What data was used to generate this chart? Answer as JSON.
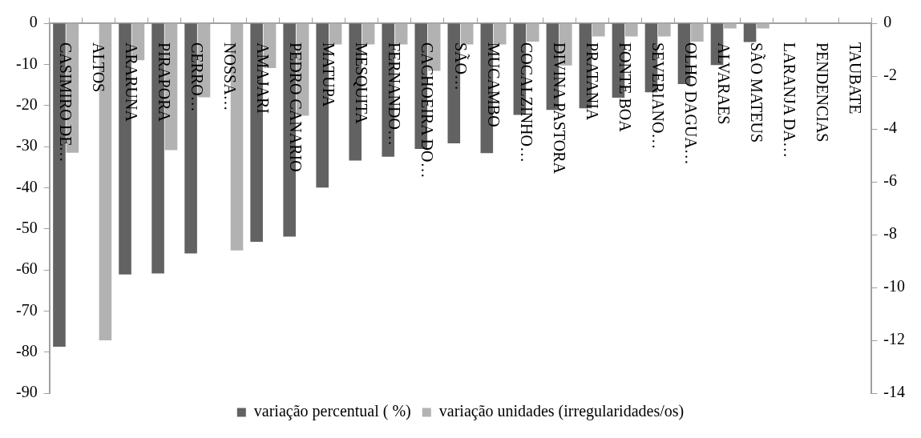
{
  "chart_data": {
    "type": "bar",
    "categories": [
      "CASIMIRO DE…",
      "ALTOS",
      "ARARUNA",
      "PIRAPORA",
      "CERRO…",
      "NOSSA…",
      "AMAJARI",
      "PEDRO CANARIO",
      "MATUPA",
      "MESQUITA",
      "FERNANDO…",
      "CACHOEIRA DO…",
      "SÃO…",
      "MUCAMBO",
      "COCALZINHO…",
      "DIVINA PASTORA",
      "PRATANIA",
      "FONTE BOA",
      "SEVERIANO…",
      "OLHO DAGUA…",
      "ALVARAES",
      "SÃO MATEUS",
      "LARANJA DA…",
      "PENDENCIAS",
      "TAUBATE"
    ],
    "series": [
      {
        "name": "variação percentual ( %)",
        "color": "#626262",
        "values": [
          -78.7,
          null,
          -61.1,
          -60.9,
          -56.0,
          null,
          -53.2,
          -51.9,
          -40.0,
          -33.4,
          -32.5,
          -30.6,
          -29.2,
          -31.6,
          -22.3,
          -21.1,
          -20.7,
          -18.1,
          -16.8,
          -14.8,
          -10.2,
          -4.6,
          0,
          0,
          0
        ]
      },
      {
        "name": "variação unidades (irregularidades/os)",
        "color": "#b2b2b2",
        "axis": "y2",
        "values": [
          -4.9,
          -12.0,
          -1.4,
          -4.8,
          -2.8,
          -8.6,
          -1.7,
          -3.5,
          -0.8,
          -0.8,
          -0.8,
          -1.8,
          -0.8,
          -0.8,
          -0.7,
          -1.6,
          -0.5,
          -0.5,
          -0.5,
          -0.7,
          -0.2,
          -0.2,
          0,
          0,
          0
        ]
      }
    ],
    "ylim": [
      -90,
      0
    ],
    "yticks": [
      -90,
      -80,
      -70,
      -60,
      -50,
      -40,
      -30,
      -20,
      -10,
      0
    ],
    "y2lim": [
      -14,
      0
    ],
    "y2ticks": [
      -14,
      -12,
      -10,
      -8,
      -6,
      -4,
      -2,
      0
    ],
    "legend": "bottom"
  }
}
